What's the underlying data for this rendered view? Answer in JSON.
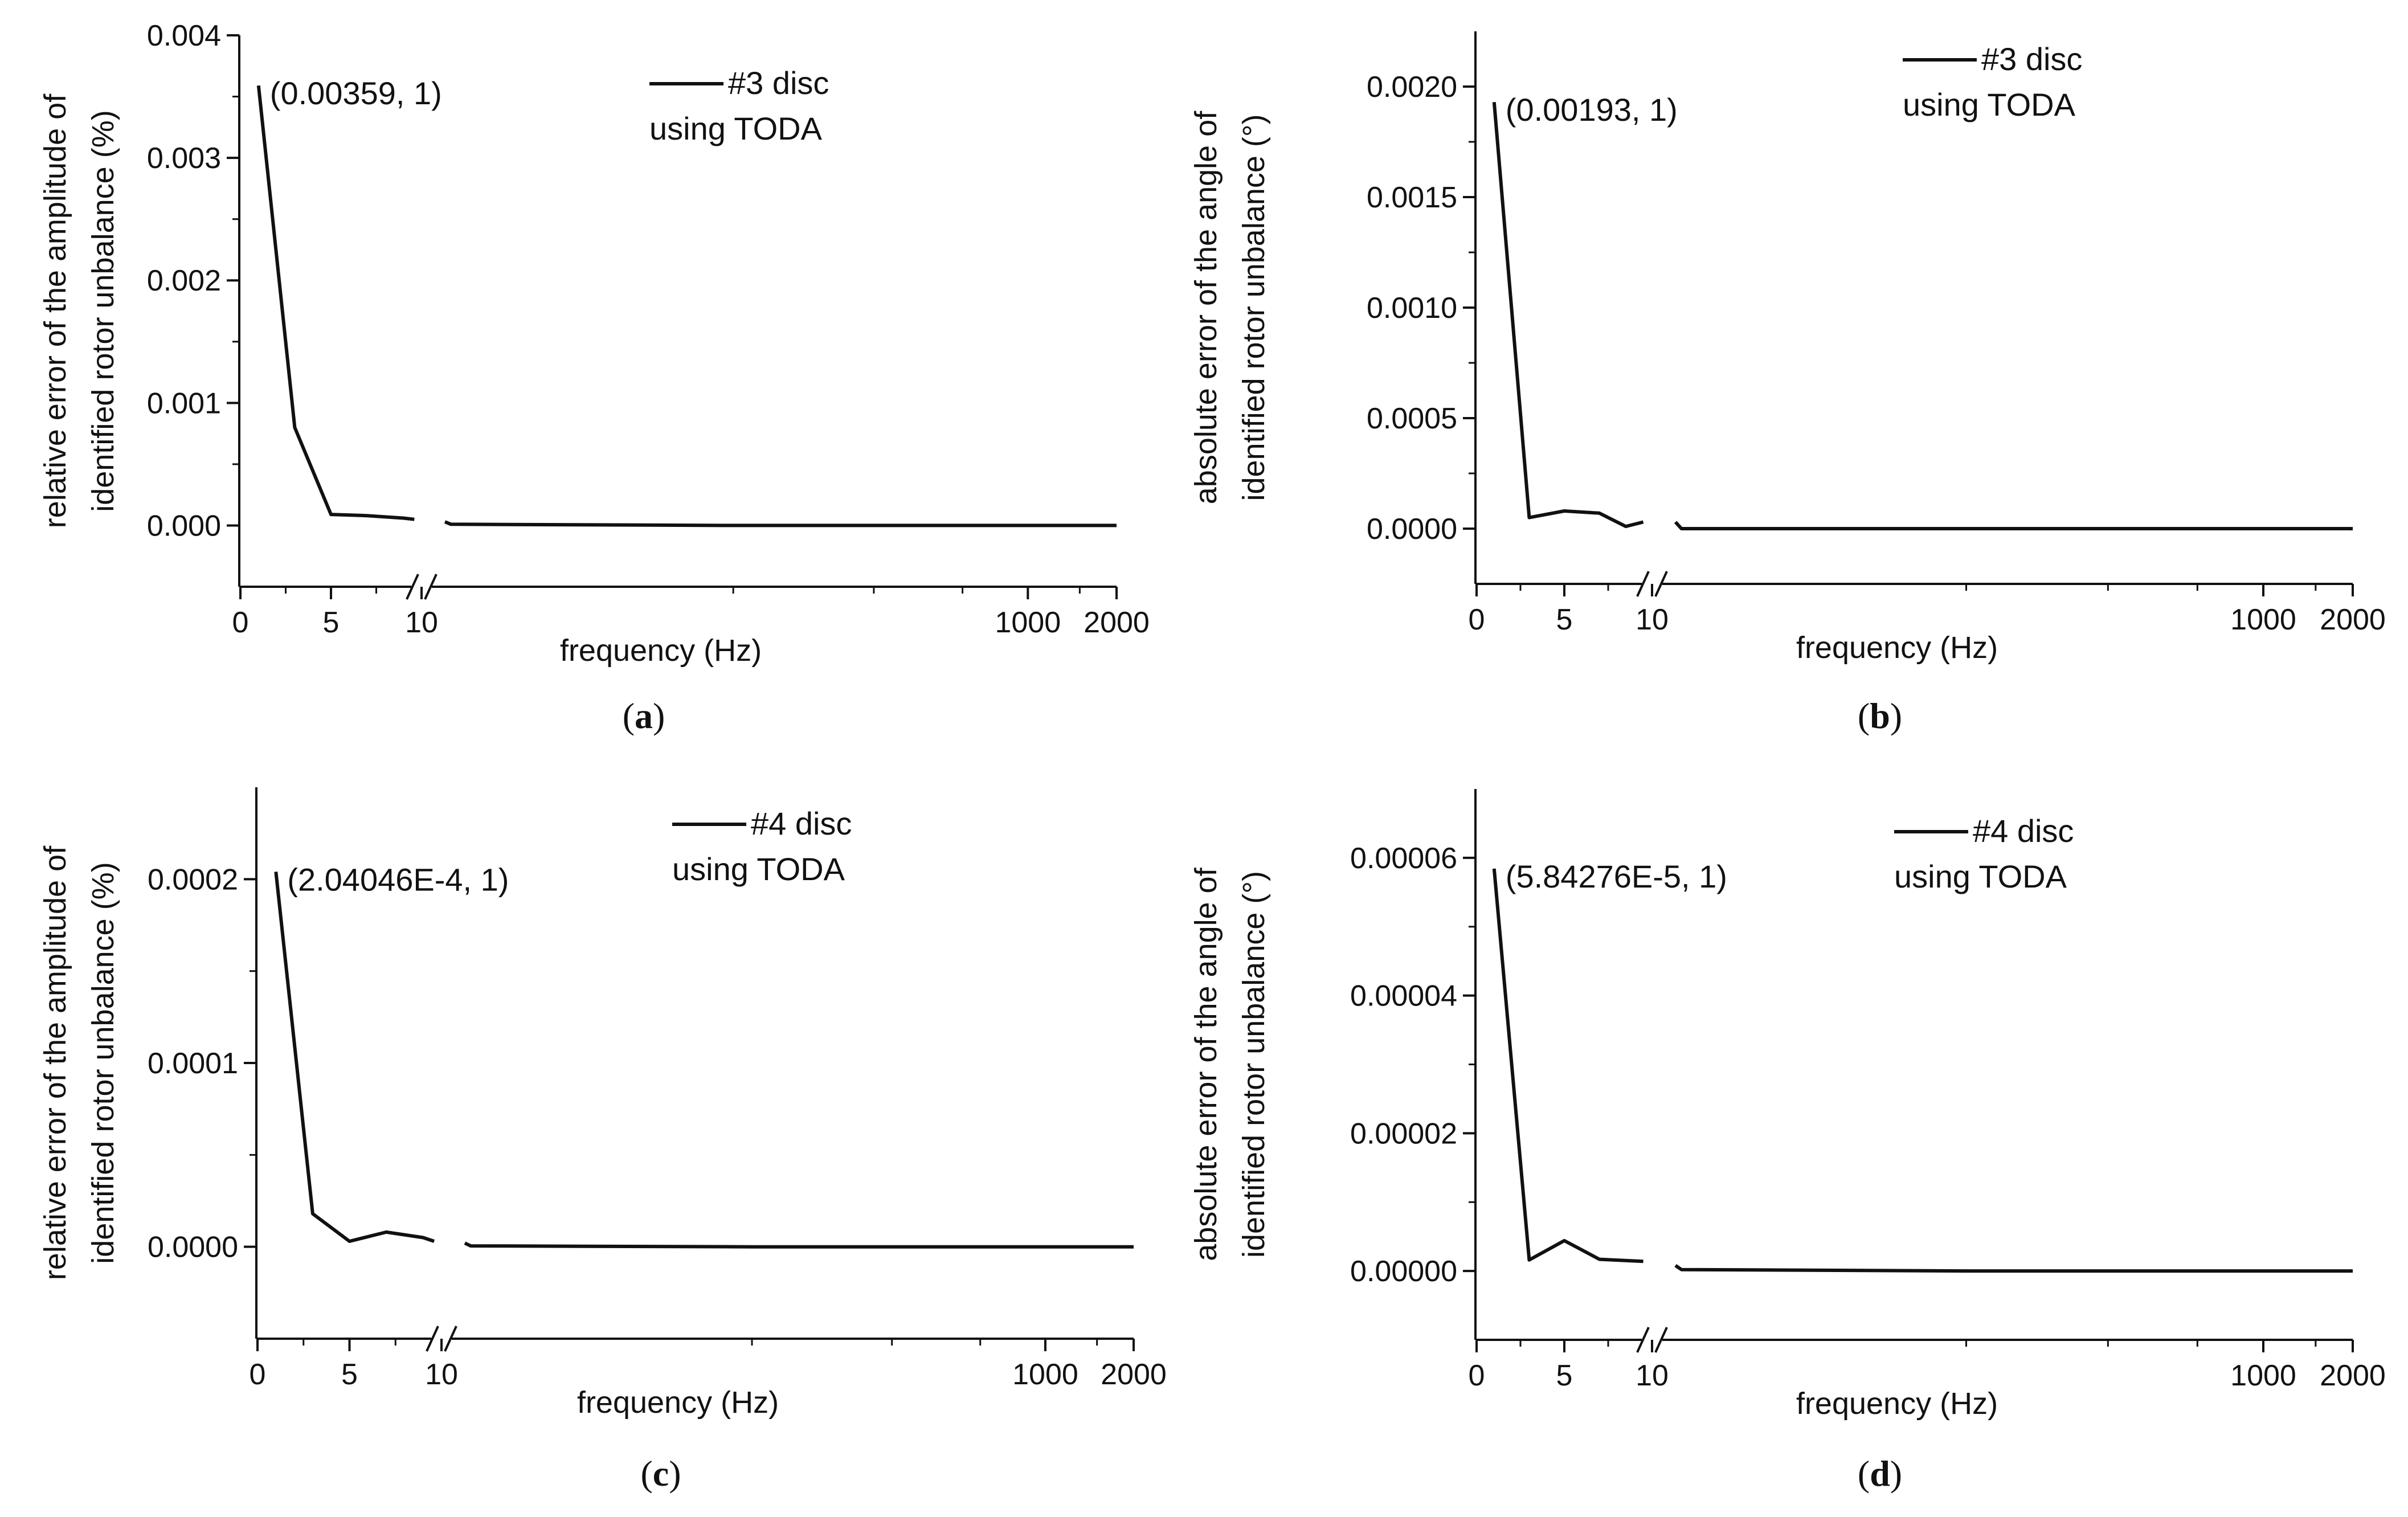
{
  "chart_data": [
    {
      "id": "a",
      "panel_label": "a",
      "type": "line",
      "xlabel": "frequency (Hz)",
      "ylabel_lines": [
        "relative error of the amplitude of",
        "identified rotor unbalance (%)"
      ],
      "x_break": 10,
      "x_ticks_low": [
        0,
        5,
        10
      ],
      "x_ticks_high": [
        1000,
        2000
      ],
      "y_ticks": [
        "0.000",
        "0.001",
        "0.002",
        "0.003",
        "0.004"
      ],
      "y_tick_values": [
        0,
        0.001,
        0.002,
        0.003,
        0.004
      ],
      "ylim": [
        -0.0005,
        0.004
      ],
      "legend": {
        "name": "#3 disc",
        "subtitle": "using TODA",
        "position": "top-center"
      },
      "annotation": {
        "text": "(0.00359, 1)",
        "x": 1,
        "y": 0.00359
      },
      "series": [
        {
          "name": "#3 disc",
          "low": {
            "x": [
              1,
              3,
              5,
              7,
              9,
              9.6
            ],
            "y": [
              0.00359,
              0.0008,
              9e-05,
              8e-05,
              6e-05,
              5e-05
            ]
          },
          "high": {
            "x": [
              10.5,
              11,
              100,
              1000,
              2000
            ],
            "y": [
              3e-05,
              1e-05,
              0.0,
              0.0,
              0.0
            ]
          }
        }
      ]
    },
    {
      "id": "b",
      "panel_label": "b",
      "type": "line",
      "xlabel": "frequency (Hz)",
      "ylabel_lines": [
        "absolute error of the angle of",
        "identified rotor unbalance (°)"
      ],
      "x_break": 10,
      "x_ticks_low": [
        0,
        5,
        10
      ],
      "x_ticks_high": [
        1000,
        2000
      ],
      "y_ticks": [
        "0.0000",
        "0.0005",
        "0.0010",
        "0.0015",
        "0.0020"
      ],
      "y_tick_values": [
        0,
        0.0005,
        0.001,
        0.0015,
        0.002
      ],
      "ylim": [
        -0.00025,
        0.00225
      ],
      "legend": {
        "name": "#3 disc",
        "subtitle": "using TODA",
        "position": "top-center"
      },
      "annotation": {
        "text": "(0.00193, 1)",
        "x": 1,
        "y": 0.00193
      },
      "series": [
        {
          "name": "#3 disc",
          "low": {
            "x": [
              1,
              3,
              5,
              7,
              8.5,
              9.5
            ],
            "y": [
              0.00193,
              5e-05,
              8e-05,
              7e-05,
              1e-05,
              3e-05
            ]
          },
          "high": {
            "x": [
              10.5,
              11,
              100,
              1000,
              2000
            ],
            "y": [
              3e-05,
              0.0,
              0.0,
              0.0,
              0.0
            ]
          }
        }
      ]
    },
    {
      "id": "c",
      "panel_label": "c",
      "type": "line",
      "xlabel": "frequency (Hz)",
      "ylabel_lines": [
        "relative error of the amplitude of",
        "identified rotor unbalance (%)"
      ],
      "x_break": 10,
      "x_ticks_low": [
        0,
        5,
        10
      ],
      "x_ticks_high": [
        1000,
        2000
      ],
      "y_ticks": [
        "0.0000",
        "0.0001",
        "0.0002"
      ],
      "y_tick_values": [
        0,
        0.0001,
        0.0002
      ],
      "ylim": [
        -5e-05,
        0.00025
      ],
      "legend": {
        "name": "#4 disc",
        "subtitle": "using TODA",
        "position": "top-center"
      },
      "annotation": {
        "text": "(2.04046E-4, 1)",
        "x": 1,
        "y": 0.000204046
      },
      "series": [
        {
          "name": "#4 disc",
          "low": {
            "x": [
              1,
              3,
              5,
              7,
              9,
              9.6
            ],
            "y": [
              0.000204046,
              1.8e-05,
              3e-06,
              8e-06,
              5e-06,
              3e-06
            ]
          },
          "high": {
            "x": [
              10.5,
              11,
              100,
              1000,
              2000
            ],
            "y": [
              2e-06,
              5e-07,
              0.0,
              0.0,
              0.0
            ]
          }
        }
      ]
    },
    {
      "id": "d",
      "panel_label": "d",
      "type": "line",
      "xlabel": "frequency (Hz)",
      "ylabel_lines": [
        "absolute error of the angle of",
        "identified rotor unbalance (°)"
      ],
      "x_break": 10,
      "x_ticks_low": [
        0,
        5,
        10
      ],
      "x_ticks_high": [
        1000,
        2000
      ],
      "y_ticks": [
        "0.00000",
        "0.00002",
        "0.00004",
        "0.00006"
      ],
      "y_tick_values": [
        0,
        2e-05,
        4e-05,
        6e-05
      ],
      "ylim": [
        -1e-05,
        7e-05
      ],
      "legend": {
        "name": "#4 disc",
        "subtitle": "using TODA",
        "position": "top-center"
      },
      "annotation": {
        "text": "(5.84276E-5, 1)",
        "x": 1,
        "y": 5.84276e-05
      },
      "series": [
        {
          "name": "#4 disc",
          "low": {
            "x": [
              1,
              3,
              5,
              7,
              9.5
            ],
            "y": [
              5.84276e-05,
              1.6e-06,
              4.4e-06,
              1.7e-06,
              1.4e-06
            ]
          },
          "high": {
            "x": [
              10.5,
              11,
              100,
              1000,
              2000
            ],
            "y": [
              8e-07,
              2e-07,
              0.0,
              0.0,
              0.0
            ]
          }
        }
      ]
    }
  ]
}
